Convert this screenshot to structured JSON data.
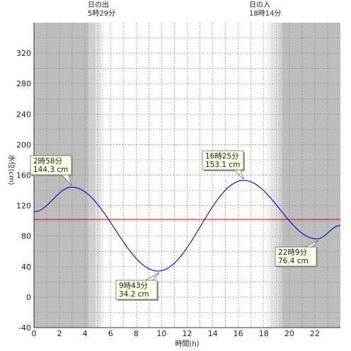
{
  "chart_data": {
    "type": "line",
    "xlabel": "時間(h)",
    "ylabel": "水位(cm)",
    "xlim": [
      0,
      24
    ],
    "ylim": [
      -40,
      360
    ],
    "x_ticks": [
      0,
      2,
      4,
      6,
      8,
      10,
      12,
      14,
      16,
      18,
      20,
      22
    ],
    "x_tick_labels": [
      "0",
      "2",
      "4",
      "6",
      "8",
      "10",
      "12",
      "14",
      "16",
      "18",
      "20",
      "22"
    ],
    "y_ticks": [
      -40,
      0,
      40,
      80,
      120,
      160,
      200,
      240,
      280,
      320
    ],
    "y_tick_labels": [
      "-40",
      "0",
      "40",
      "80",
      "120",
      "160",
      "200",
      "240",
      "280",
      "320"
    ],
    "grid": true,
    "colors": {
      "tide_line": "#0000cc",
      "reference_line": "#dd0000",
      "night_shade": "#bdbdbd",
      "twilight_1": "#d0d0d0",
      "twilight_2": "#e3e3e3",
      "twilight_3": "#f1f1f1",
      "callout_bg": "#ffffe8"
    },
    "sun_events": [
      {
        "label": "日の出",
        "time": "5時29分",
        "hour": 5.4833
      },
      {
        "label": "日の入",
        "time": "18時14分",
        "hour": 18.2333
      }
    ],
    "reference_level": 102,
    "extremes": [
      {
        "time": "2時58分",
        "hour": 2.9667,
        "value": 144.3,
        "value_label": "144.3 cm",
        "kind": "high"
      },
      {
        "time": "9時43分",
        "hour": 9.7167,
        "value": 34.2,
        "value_label": "34.2 cm",
        "kind": "low"
      },
      {
        "time": "16時25分",
        "hour": 16.4167,
        "value": 153.1,
        "value_label": "153.1 cm",
        "kind": "high"
      },
      {
        "time": "22時9分",
        "hour": 22.15,
        "value": 76.4,
        "value_label": "76.4 cm",
        "kind": "low"
      }
    ],
    "series": [
      {
        "x": [
          0,
          2.9667,
          9.7167,
          16.4167,
          22.15,
          24
        ],
        "y": [
          112,
          144.3,
          34.2,
          153.1,
          76.4,
          94
        ]
      }
    ]
  }
}
